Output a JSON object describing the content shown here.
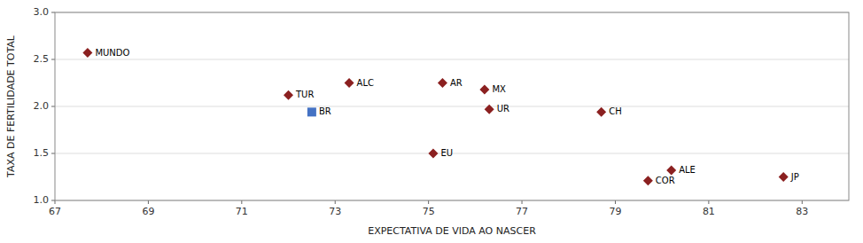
{
  "chart_data": {
    "type": "scatter",
    "title": "",
    "xlabel": "EXPECTATIVA DE VIDA AO NASCER",
    "ylabel": "TAXA DE FERTILIDADE TOTAL",
    "xlim": [
      67,
      84
    ],
    "ylim": [
      1.0,
      3.0
    ],
    "xticks": [
      67,
      69,
      71,
      73,
      75,
      77,
      79,
      81,
      83
    ],
    "yticks": [
      {
        "value": 1.0,
        "label": "1.0"
      },
      1.5,
      {
        "value": 2.0,
        "label": "2.0"
      },
      2.5,
      {
        "value": 3.0,
        "label": "3.0"
      }
    ],
    "grid": "y",
    "series": [
      {
        "marker": "diamond",
        "color": "#8B2020",
        "x": [
          67.7,
          72.0,
          73.3,
          75.3,
          76.2,
          76.3,
          75.1,
          78.7,
          79.7,
          80.2,
          82.6
        ],
        "y": [
          2.57,
          2.12,
          2.25,
          2.25,
          2.18,
          1.97,
          1.5,
          1.94,
          1.21,
          1.32,
          1.25
        ],
        "labels": [
          "MUNDO",
          "TUR",
          "ALC",
          "AR",
          "MX",
          "UR",
          "EU",
          "CH",
          "COR",
          "ALE",
          "JP"
        ]
      },
      {
        "marker": "square",
        "color": "#4472C4",
        "x": [
          72.5
        ],
        "y": [
          1.94
        ],
        "labels": [
          "BR"
        ]
      }
    ]
  }
}
